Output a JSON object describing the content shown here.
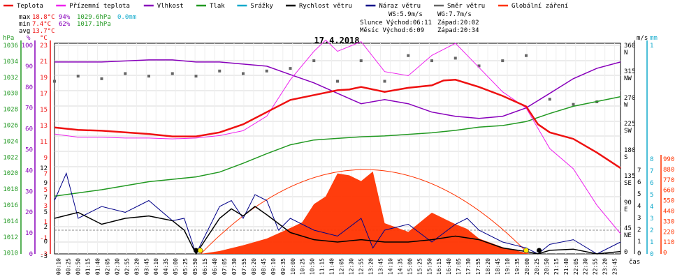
{
  "legend": [
    {
      "label": "Teplota",
      "color": "#ee1111"
    },
    {
      "label": "Přízemní teplota",
      "color": "#ee22ee"
    },
    {
      "label": "Vlhkost",
      "color": "#8800bb"
    },
    {
      "label": "Tlak",
      "color": "#229922"
    },
    {
      "label": "Srážky",
      "color": "#11aacc"
    },
    {
      "label": "Rychlost větru",
      "color": "#000000"
    },
    {
      "label": "Náraz větru",
      "color": "#000088"
    },
    {
      "label": "Směr větru",
      "color": "#666666"
    },
    {
      "label": "Globální záření",
      "color": "#ff3300"
    }
  ],
  "stats": {
    "max": {
      "label": "max",
      "temp": "18.8°C",
      "hum": "94%",
      "press": "1029.6hPa",
      "rain": "0.0mm"
    },
    "min": {
      "label": "min",
      "temp": "7.4°C",
      "hum": "62%",
      "press": "1017.1hPa"
    },
    "avg": {
      "label": "avg",
      "temp": "13.7°C"
    }
  },
  "info": {
    "ws": "WS:5.9m/s",
    "wg": "WG:7.7m/s",
    "sun": "Slunce Východ:06:11",
    "sun_set": "Západ:20:02",
    "moon": "Měsíc Východ:6:09",
    "moon_set": "Západ:20:34"
  },
  "date_title": "17.4.2018",
  "x_unit": "čas",
  "axes": {
    "hpa": {
      "unit": "hPa",
      "color": "#229922",
      "ticks": [
        "1036",
        "1034",
        "1032",
        "1030",
        "1028",
        "1026",
        "1024",
        "1022",
        "1020",
        "1018",
        "1016",
        "1014",
        "1012",
        "1010"
      ]
    },
    "pct": {
      "unit": "%",
      "color": "#8800bb",
      "ticks": [
        "100",
        "90",
        "80",
        "70",
        "60",
        "50",
        "40",
        "30",
        "20",
        "10",
        "0"
      ]
    },
    "degc": {
      "unit": "°C",
      "color": "#ee1111",
      "ticks": [
        "23",
        "21",
        "19",
        "17",
        "15",
        "13",
        "11",
        "9",
        "7",
        "5",
        "3",
        "1",
        "-1",
        "-3"
      ]
    },
    "degc_low": {
      "ticks": [
        "12",
        "9",
        "7",
        "5",
        "2",
        "0",
        "-3"
      ]
    },
    "wind_dir": {
      "ticks": [
        "360",
        "N",
        "315",
        "NW",
        "270",
        "W",
        "225",
        "SW",
        "180",
        "S",
        "135",
        "SE",
        "90",
        "E",
        "45",
        "NE",
        "0"
      ]
    },
    "ms": {
      "unit": "m/s",
      "ticks": [
        "7",
        "6",
        "5",
        "4",
        "3",
        "2",
        "1",
        "0"
      ]
    },
    "mm": {
      "unit": "mm",
      "color": "#11aacc",
      "ticks": [
        "1",
        "8",
        "7",
        "6",
        "5",
        "4",
        "3",
        "2",
        "1",
        "0"
      ]
    },
    "wm2": {
      "color": "#ff3300",
      "ticks": [
        "990",
        "880",
        "770",
        "660",
        "550",
        "440",
        "330",
        "220",
        "110",
        "0"
      ]
    }
  },
  "x_ticks": [
    "00:10",
    "00:25",
    "00:50",
    "01:15",
    "01:40",
    "02:05",
    "02:30",
    "02:55",
    "03:20",
    "03:45",
    "04:10",
    "04:35",
    "05:00",
    "05:25",
    "05:50",
    "06:15",
    "06:40",
    "07:05",
    "07:30",
    "07:55",
    "08:20",
    "08:45",
    "09:10",
    "09:35",
    "10:00",
    "10:25",
    "10:50",
    "11:15",
    "11:40",
    "12:05",
    "12:30",
    "12:55",
    "13:20",
    "13:45",
    "14:10",
    "14:35",
    "15:00",
    "15:25",
    "15:50",
    "16:15",
    "16:40",
    "17:05",
    "17:30",
    "17:55",
    "18:20",
    "18:45",
    "19:10",
    "19:35",
    "20:00",
    "20:25",
    "20:50",
    "21:15",
    "21:40",
    "22:05",
    "22:30",
    "22:55",
    "23:20",
    "23:45"
  ],
  "chart_data": {
    "type": "line",
    "title": "17.4.2018",
    "x_range_hours": [
      0,
      24
    ],
    "series": [
      {
        "name": "Teplota",
        "unit": "°C",
        "points": [
          [
            0,
            12.6
          ],
          [
            1,
            12.3
          ],
          [
            2,
            12.2
          ],
          [
            3,
            12.0
          ],
          [
            4,
            11.8
          ],
          [
            5,
            11.5
          ],
          [
            6,
            11.5
          ],
          [
            7,
            12.0
          ],
          [
            8,
            13.0
          ],
          [
            9,
            14.5
          ],
          [
            10,
            16.0
          ],
          [
            11,
            16.6
          ],
          [
            12,
            17.2
          ],
          [
            12.5,
            17.3
          ],
          [
            13,
            17.6
          ],
          [
            14,
            17.0
          ],
          [
            15,
            17.5
          ],
          [
            16,
            17.8
          ],
          [
            16.5,
            18.4
          ],
          [
            17,
            18.5
          ],
          [
            18,
            17.6
          ],
          [
            19,
            16.5
          ],
          [
            20,
            15.2
          ],
          [
            20.5,
            13.0
          ],
          [
            21,
            12.0
          ],
          [
            22,
            11.2
          ],
          [
            23,
            9.5
          ],
          [
            24,
            7.6
          ]
        ]
      },
      {
        "name": "Přízemní teplota",
        "unit": "°C",
        "points": [
          [
            0,
            11.8
          ],
          [
            1,
            11.4
          ],
          [
            2,
            11.4
          ],
          [
            3,
            11.3
          ],
          [
            4,
            11.3
          ],
          [
            5,
            11.2
          ],
          [
            6,
            11.3
          ],
          [
            7,
            11.6
          ],
          [
            8,
            12.2
          ],
          [
            9,
            14.0
          ],
          [
            10,
            18.5
          ],
          [
            11,
            22.0
          ],
          [
            11.5,
            23.4
          ],
          [
            12,
            22.0
          ],
          [
            13,
            23.2
          ],
          [
            14,
            19.5
          ],
          [
            15,
            19.0
          ],
          [
            16,
            21.5
          ],
          [
            17,
            23.0
          ],
          [
            18,
            20.0
          ],
          [
            19,
            17.0
          ],
          [
            20,
            15.0
          ],
          [
            20.5,
            12.5
          ],
          [
            21,
            10.0
          ],
          [
            22,
            7.5
          ],
          [
            23,
            3.0
          ],
          [
            24,
            -0.5
          ]
        ]
      },
      {
        "name": "Vlhkost",
        "unit": "%",
        "points": [
          [
            0,
            92
          ],
          [
            2,
            92
          ],
          [
            4,
            93
          ],
          [
            5,
            93
          ],
          [
            6,
            92
          ],
          [
            7,
            92
          ],
          [
            8,
            91
          ],
          [
            9,
            90
          ],
          [
            10,
            86
          ],
          [
            11,
            82
          ],
          [
            12,
            77
          ],
          [
            13,
            72
          ],
          [
            14,
            74
          ],
          [
            15,
            72
          ],
          [
            16,
            68
          ],
          [
            17,
            66
          ],
          [
            18,
            65
          ],
          [
            19,
            66
          ],
          [
            20,
            70
          ],
          [
            21,
            77
          ],
          [
            22,
            84
          ],
          [
            23,
            89
          ],
          [
            24,
            92
          ]
        ]
      },
      {
        "name": "Tlak",
        "unit": "hPa",
        "points": [
          [
            0,
            1017.2
          ],
          [
            2,
            1018.0
          ],
          [
            4,
            1019.0
          ],
          [
            6,
            1019.6
          ],
          [
            7,
            1020.2
          ],
          [
            8,
            1021.3
          ],
          [
            9,
            1022.5
          ],
          [
            10,
            1023.6
          ],
          [
            11,
            1024.2
          ],
          [
            12,
            1024.4
          ],
          [
            13,
            1024.6
          ],
          [
            14,
            1024.7
          ],
          [
            15,
            1024.9
          ],
          [
            16,
            1025.1
          ],
          [
            17,
            1025.4
          ],
          [
            18,
            1025.8
          ],
          [
            19,
            1026.0
          ],
          [
            20,
            1026.5
          ],
          [
            21,
            1027.5
          ],
          [
            22,
            1028.4
          ],
          [
            23,
            1029.0
          ],
          [
            24,
            1029.6
          ]
        ]
      },
      {
        "name": "Rychlost větru",
        "unit": "m/s",
        "points": [
          [
            0,
            3.0
          ],
          [
            1,
            3.5
          ],
          [
            2,
            2.5
          ],
          [
            3,
            3.0
          ],
          [
            4,
            3.2
          ],
          [
            5,
            2.8
          ],
          [
            5.5,
            2.0
          ],
          [
            6,
            0.0
          ],
          [
            6.5,
            1.5
          ],
          [
            7,
            3.0
          ],
          [
            7.5,
            3.8
          ],
          [
            8,
            3.2
          ],
          [
            8.5,
            4.0
          ],
          [
            9,
            3.3
          ],
          [
            10,
            1.8
          ],
          [
            11,
            1.2
          ],
          [
            12,
            1.0
          ],
          [
            13,
            1.2
          ],
          [
            14,
            1.0
          ],
          [
            15,
            1.0
          ],
          [
            16,
            1.2
          ],
          [
            17,
            1.5
          ],
          [
            18,
            1.2
          ],
          [
            19,
            0.5
          ],
          [
            20,
            0.2
          ],
          [
            20.5,
            0.0
          ],
          [
            21,
            0.3
          ],
          [
            22,
            0.4
          ],
          [
            23,
            0.0
          ],
          [
            24,
            0.2
          ]
        ]
      },
      {
        "name": "Náraz větru",
        "unit": "m/s",
        "points": [
          [
            0,
            4.5
          ],
          [
            0.5,
            6.8
          ],
          [
            1,
            3.0
          ],
          [
            2,
            4.0
          ],
          [
            3,
            3.5
          ],
          [
            4,
            4.5
          ],
          [
            5,
            2.8
          ],
          [
            5.5,
            3.0
          ],
          [
            6,
            0.0
          ],
          [
            6.5,
            2.0
          ],
          [
            7,
            4.0
          ],
          [
            7.5,
            4.5
          ],
          [
            8,
            3.0
          ],
          [
            8.5,
            5.0
          ],
          [
            9,
            4.5
          ],
          [
            9.5,
            2.0
          ],
          [
            10,
            3.0
          ],
          [
            11,
            2.0
          ],
          [
            12,
            1.5
          ],
          [
            13,
            3.0
          ],
          [
            13.5,
            0.5
          ],
          [
            14,
            2.0
          ],
          [
            15,
            2.5
          ],
          [
            16,
            1.0
          ],
          [
            17,
            2.5
          ],
          [
            17.5,
            3.0
          ],
          [
            18,
            2.0
          ],
          [
            19,
            1.0
          ],
          [
            20,
            0.5
          ],
          [
            20.5,
            0.0
          ],
          [
            21,
            0.8
          ],
          [
            22,
            1.2
          ],
          [
            23,
            0.0
          ],
          [
            24,
            1.0
          ]
        ]
      },
      {
        "name": "Globální záření",
        "unit": "W/m²",
        "points": [
          [
            6.2,
            0
          ],
          [
            7,
            30
          ],
          [
            8,
            90
          ],
          [
            9,
            160
          ],
          [
            10,
            270
          ],
          [
            10.5,
            330
          ],
          [
            11,
            520
          ],
          [
            11.5,
            600
          ],
          [
            12,
            840
          ],
          [
            12.5,
            820
          ],
          [
            13,
            760
          ],
          [
            13.5,
            860
          ],
          [
            14,
            320
          ],
          [
            15,
            230
          ],
          [
            16,
            430
          ],
          [
            17,
            310
          ],
          [
            17.5,
            260
          ],
          [
            18,
            160
          ],
          [
            19,
            70
          ],
          [
            20,
            10
          ],
          [
            20.1,
            0
          ]
        ]
      },
      {
        "name": "Směr větru",
        "unit": "°",
        "points": [
          [
            0,
            290
          ],
          [
            1,
            300
          ],
          [
            2,
            295
          ],
          [
            3,
            305
          ],
          [
            4,
            300
          ],
          [
            5,
            305
          ],
          [
            6,
            300
          ],
          [
            7,
            310
          ],
          [
            8,
            305
          ],
          [
            9,
            310
          ],
          [
            10,
            315
          ],
          [
            11,
            330
          ],
          [
            12,
            290
          ],
          [
            13,
            330
          ],
          [
            14,
            290
          ],
          [
            15,
            340
          ],
          [
            16,
            330
          ],
          [
            17,
            335
          ],
          [
            18,
            320
          ],
          [
            19,
            330
          ],
          [
            20,
            340
          ],
          [
            21,
            255
          ],
          [
            22,
            245
          ],
          [
            23,
            250
          ]
        ]
      }
    ]
  }
}
